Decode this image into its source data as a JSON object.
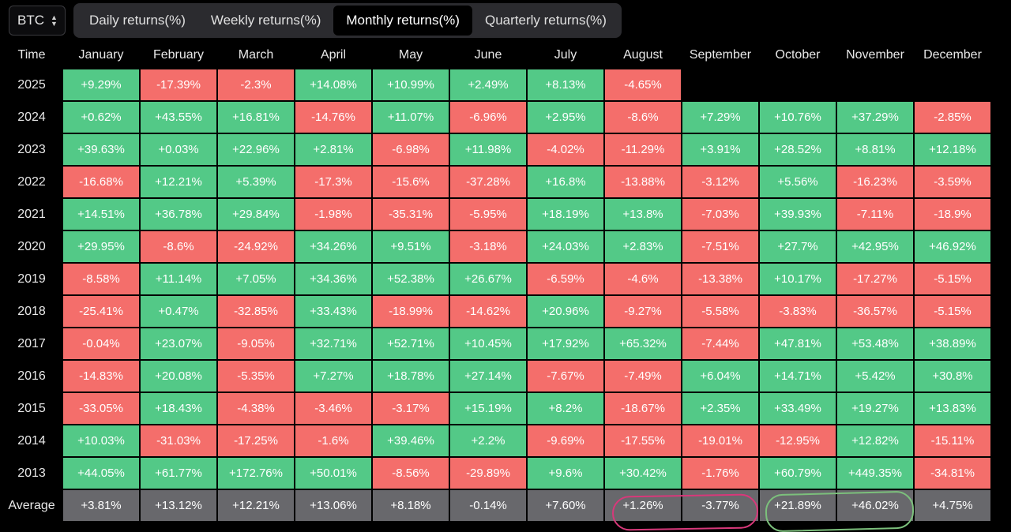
{
  "asset": {
    "label": "BTC"
  },
  "tabs": [
    {
      "label": "Daily returns(%)",
      "active": false
    },
    {
      "label": "Weekly returns(%)",
      "active": false
    },
    {
      "label": "Monthly returns(%)",
      "active": true
    },
    {
      "label": "Quarterly returns(%)",
      "active": false
    }
  ],
  "table": {
    "time_label": "Time",
    "months": [
      "January",
      "February",
      "March",
      "April",
      "May",
      "June",
      "July",
      "August",
      "September",
      "October",
      "November",
      "December"
    ],
    "rows": [
      {
        "year": "2025",
        "values": [
          "+9.29%",
          "-17.39%",
          "-2.3%",
          "+14.08%",
          "+10.99%",
          "+2.49%",
          "+8.13%",
          "-4.65%",
          "",
          "",
          "",
          ""
        ]
      },
      {
        "year": "2024",
        "values": [
          "+0.62%",
          "+43.55%",
          "+16.81%",
          "-14.76%",
          "+11.07%",
          "-6.96%",
          "+2.95%",
          "-8.6%",
          "+7.29%",
          "+10.76%",
          "+37.29%",
          "-2.85%"
        ]
      },
      {
        "year": "2023",
        "values": [
          "+39.63%",
          "+0.03%",
          "+22.96%",
          "+2.81%",
          "-6.98%",
          "+11.98%",
          "-4.02%",
          "-11.29%",
          "+3.91%",
          "+28.52%",
          "+8.81%",
          "+12.18%"
        ]
      },
      {
        "year": "2022",
        "values": [
          "-16.68%",
          "+12.21%",
          "+5.39%",
          "-17.3%",
          "-15.6%",
          "-37.28%",
          "+16.8%",
          "-13.88%",
          "-3.12%",
          "+5.56%",
          "-16.23%",
          "-3.59%"
        ]
      },
      {
        "year": "2021",
        "values": [
          "+14.51%",
          "+36.78%",
          "+29.84%",
          "-1.98%",
          "-35.31%",
          "-5.95%",
          "+18.19%",
          "+13.8%",
          "-7.03%",
          "+39.93%",
          "-7.11%",
          "-18.9%"
        ]
      },
      {
        "year": "2020",
        "values": [
          "+29.95%",
          "-8.6%",
          "-24.92%",
          "+34.26%",
          "+9.51%",
          "-3.18%",
          "+24.03%",
          "+2.83%",
          "-7.51%",
          "+27.7%",
          "+42.95%",
          "+46.92%"
        ]
      },
      {
        "year": "2019",
        "values": [
          "-8.58%",
          "+11.14%",
          "+7.05%",
          "+34.36%",
          "+52.38%",
          "+26.67%",
          "-6.59%",
          "-4.6%",
          "-13.38%",
          "+10.17%",
          "-17.27%",
          "-5.15%"
        ]
      },
      {
        "year": "2018",
        "values": [
          "-25.41%",
          "+0.47%",
          "-32.85%",
          "+33.43%",
          "-18.99%",
          "-14.62%",
          "+20.96%",
          "-9.27%",
          "-5.58%",
          "-3.83%",
          "-36.57%",
          "-5.15%"
        ]
      },
      {
        "year": "2017",
        "values": [
          "-0.04%",
          "+23.07%",
          "-9.05%",
          "+32.71%",
          "+52.71%",
          "+10.45%",
          "+17.92%",
          "+65.32%",
          "-7.44%",
          "+47.81%",
          "+53.48%",
          "+38.89%"
        ]
      },
      {
        "year": "2016",
        "values": [
          "-14.83%",
          "+20.08%",
          "-5.35%",
          "+7.27%",
          "+18.78%",
          "+27.14%",
          "-7.67%",
          "-7.49%",
          "+6.04%",
          "+14.71%",
          "+5.42%",
          "+30.8%"
        ]
      },
      {
        "year": "2015",
        "values": [
          "-33.05%",
          "+18.43%",
          "-4.38%",
          "-3.46%",
          "-3.17%",
          "+15.19%",
          "+8.2%",
          "-18.67%",
          "+2.35%",
          "+33.49%",
          "+19.27%",
          "+13.83%"
        ]
      },
      {
        "year": "2014",
        "values": [
          "+10.03%",
          "-31.03%",
          "-17.25%",
          "-1.6%",
          "+39.46%",
          "+2.2%",
          "-9.69%",
          "-17.55%",
          "-19.01%",
          "-12.95%",
          "+12.82%",
          "-15.11%"
        ]
      },
      {
        "year": "2013",
        "values": [
          "+44.05%",
          "+61.77%",
          "+172.76%",
          "+50.01%",
          "-8.56%",
          "-29.89%",
          "+9.6%",
          "+30.42%",
          "-1.76%",
          "+60.79%",
          "+449.35%",
          "-34.81%"
        ]
      }
    ],
    "average": {
      "label": "Average",
      "values": [
        "+3.81%",
        "+13.12%",
        "+12.21%",
        "+13.06%",
        "+8.18%",
        "-0.14%",
        "+7.60%",
        "+1.26%",
        "-3.77%",
        "+21.89%",
        "+46.02%",
        "+4.75%"
      ]
    }
  },
  "colors": {
    "positive": "#53c987",
    "negative": "#f46e6b",
    "average": "#68686c",
    "highlight_pink": "#d8387a",
    "highlight_green": "#7cc07c"
  },
  "icons": {
    "asset_selector": "sort-icon"
  }
}
